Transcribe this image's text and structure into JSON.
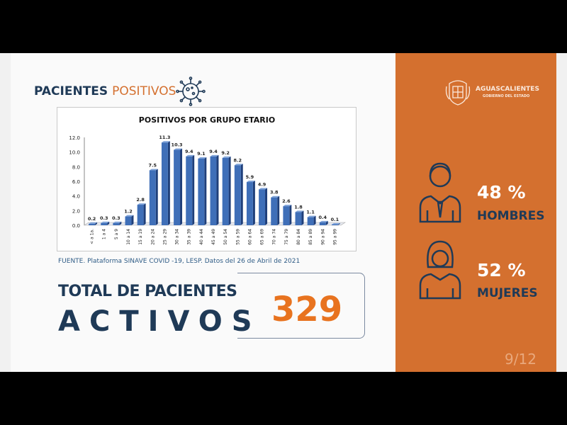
{
  "header": {
    "title_a": "PACIENTES",
    "title_b": "POSITIVOS",
    "icon": "virus-icon"
  },
  "chart_data": {
    "type": "bar",
    "title": "POSITIVOS POR GRUPO ETARIO",
    "categories": [
      "< a 1a.",
      "1 a 4",
      "5 a 9",
      "10 a 14",
      "15 a 19",
      "20 a 24",
      "25 a 29",
      "30 a 34",
      "35 a 39",
      "40 a 44",
      "45 a 49",
      "50 a 54",
      "55 a 59",
      "60 a 64",
      "65 a 69",
      "70 a 74",
      "75 a 79",
      "80 a 84",
      "85 a 89",
      "90 a 94",
      "95 a 99"
    ],
    "values": [
      0.2,
      0.3,
      0.3,
      1.2,
      2.8,
      7.5,
      11.3,
      10.3,
      9.4,
      9.1,
      9.4,
      9.2,
      8.2,
      5.9,
      4.9,
      3.8,
      2.6,
      1.8,
      1.1,
      0.4,
      0.1
    ],
    "ylim": [
      0,
      12
    ],
    "yticks": [
      "0.0",
      "2.0",
      "4.0",
      "6.0",
      "8.0",
      "10.0",
      "12.0"
    ],
    "color": "#3f6fb8",
    "grid": false
  },
  "source": "FUENTE. Plataforma SINAVE COVID -19, LESP. Datos del 26 de Abril de 2021",
  "total": {
    "line1": "TOTAL DE PACIENTES",
    "line2": "ACTIVOS",
    "value": "329"
  },
  "logo": {
    "name": "AGUASCALIENTES",
    "sub": "GOBIERNO DEL ESTADO"
  },
  "stats": [
    {
      "pct": "48 %",
      "label": "HOMBRES",
      "icon": "man-icon"
    },
    {
      "pct": "52 %",
      "label": "MUJERES",
      "icon": "woman-icon"
    }
  ],
  "page": "9/12",
  "colors": {
    "accent": "#d4702f",
    "navy": "#1f3a57",
    "number": "#e8731f"
  }
}
